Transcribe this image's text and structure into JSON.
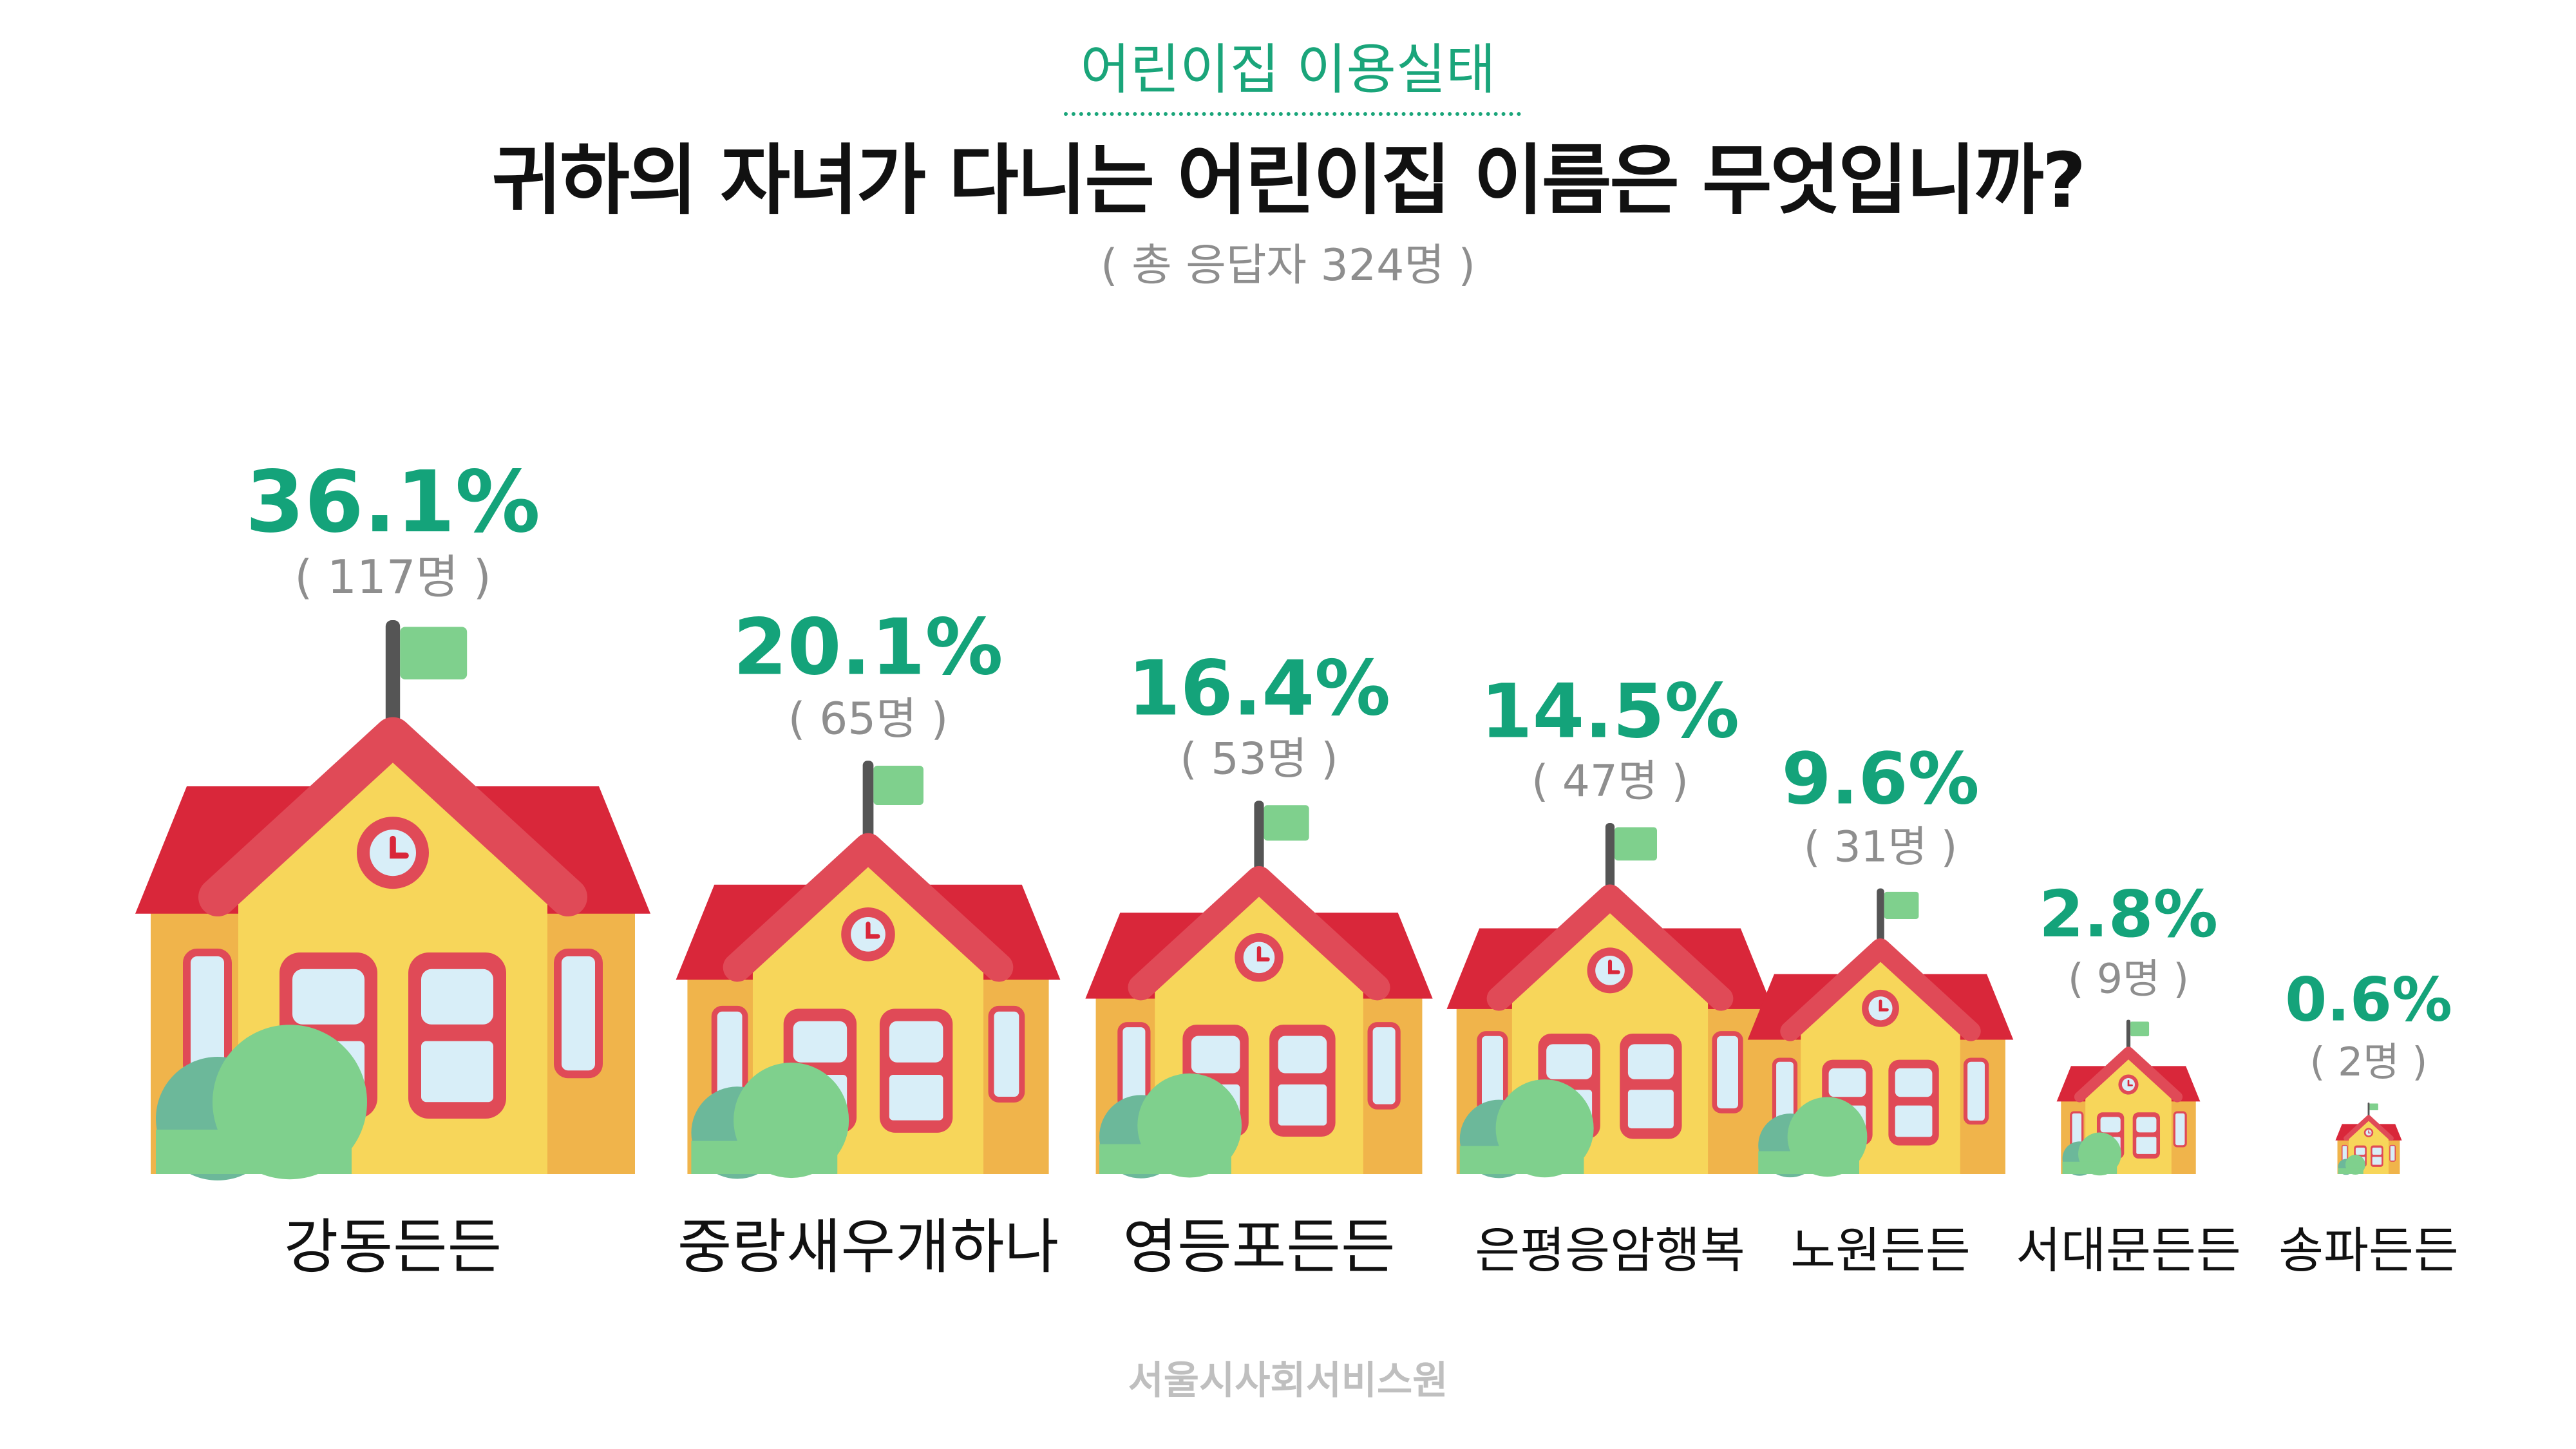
{
  "header": {
    "category": "어린이집 이용실태",
    "title": "귀하의 자녀가 다니는 어린이집 이름은 무엇입니까?",
    "subtitle": "( 총 응답자 324명 )"
  },
  "footer": {
    "org": "서울시사회서비스원"
  },
  "colors": {
    "accent": "#14a37a",
    "roof": "#d9273a",
    "roof_light": "#e04a57",
    "wall": "#f7d65a",
    "wall_side": "#f0b44b",
    "window": "#d8eef8",
    "flag": "#7fd08d",
    "bush_dark": "#6cb89a",
    "bush_light": "#7fd08d",
    "pole": "#555555"
  },
  "chart_data": {
    "type": "bar",
    "title": "귀하의 자녀가 다니는 어린이집 이름은 무엇입니까?",
    "categories": [
      "강동든든",
      "중랑새우개하나",
      "영등포든든",
      "은평응암행복",
      "노원든든",
      "서대문든든",
      "송파든든"
    ],
    "values": [
      36.1,
      20.1,
      16.4,
      14.5,
      9.6,
      2.8,
      0.6
    ],
    "value_labels": [
      "36.1%",
      "20.1%",
      "16.4%",
      "14.5%",
      "9.6%",
      "2.8%",
      "0.6%"
    ],
    "counts": [
      117,
      65,
      53,
      47,
      31,
      9,
      2
    ],
    "count_labels": [
      "( 117명 )",
      "( 65명 )",
      "( 53명 )",
      "( 47명 )",
      "( 31명 )",
      "( 9명 )",
      "( 2명 )"
    ],
    "unit": "%",
    "total": 324
  }
}
